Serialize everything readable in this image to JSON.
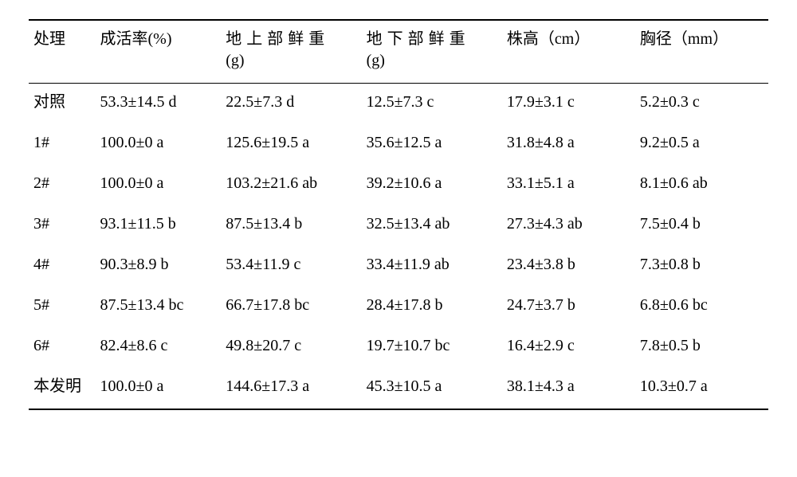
{
  "table": {
    "type": "table",
    "background_color": "#ffffff",
    "text_color": "#000000",
    "border_color": "#000000",
    "font_family": "SimSun",
    "header_fontsize_pt": 15,
    "body_fontsize_pt": 15,
    "columns": [
      {
        "key": "treatment",
        "label": "处理",
        "width_pct": 9
      },
      {
        "key": "survival",
        "label": "成活率(%)",
        "width_pct": 17
      },
      {
        "key": "shoot_fw",
        "label_spaced": "地上部鲜重",
        "unit": "(g)",
        "width_pct": 19
      },
      {
        "key": "root_fw",
        "label_spaced": "地下部鲜重",
        "unit": "(g)",
        "width_pct": 19
      },
      {
        "key": "height",
        "label": "株高（cm）",
        "width_pct": 18
      },
      {
        "key": "diameter",
        "label": "胸径（mm）",
        "width_pct": 18
      }
    ],
    "rows": [
      {
        "treatment": "对照",
        "survival": "53.3±14.5 d",
        "shoot_fw": "22.5±7.3 d",
        "root_fw": "12.5±7.3 c",
        "height": "17.9±3.1 c",
        "diameter": "5.2±0.3 c"
      },
      {
        "treatment": "1#",
        "survival": "100.0±0 a",
        "shoot_fw": "125.6±19.5 a",
        "root_fw": "35.6±12.5 a",
        "height": "31.8±4.8 a",
        "diameter": "9.2±0.5 a"
      },
      {
        "treatment": "2#",
        "survival": "100.0±0 a",
        "shoot_fw": "103.2±21.6 ab",
        "root_fw": "39.2±10.6 a",
        "height": "33.1±5.1 a",
        "diameter": "8.1±0.6 ab"
      },
      {
        "treatment": "3#",
        "survival": "93.1±11.5 b",
        "shoot_fw": "87.5±13.4 b",
        "root_fw": "32.5±13.4 ab",
        "height": "27.3±4.3 ab",
        "diameter": "7.5±0.4 b"
      },
      {
        "treatment": "4#",
        "survival": "90.3±8.9 b",
        "shoot_fw": "53.4±11.9 c",
        "root_fw": "33.4±11.9 ab",
        "height": "23.4±3.8 b",
        "diameter": "7.3±0.8 b"
      },
      {
        "treatment": "5#",
        "survival": "87.5±13.4 bc",
        "shoot_fw": "66.7±17.8 bc",
        "root_fw": "28.4±17.8 b",
        "height": "24.7±3.7 b",
        "diameter": "6.8±0.6 bc"
      },
      {
        "treatment": "6#",
        "survival": "82.4±8.6 c",
        "shoot_fw": "49.8±20.7 c",
        "root_fw": "19.7±10.7 bc",
        "height": "16.4±2.9 c",
        "diameter": "7.8±0.5 b"
      },
      {
        "treatment": "本发明",
        "survival": "100.0±0 a",
        "shoot_fw": "144.6±17.3 a",
        "root_fw": "45.3±10.5 a",
        "height": "38.1±4.3 a",
        "diameter": "10.3±0.7 a"
      }
    ]
  }
}
